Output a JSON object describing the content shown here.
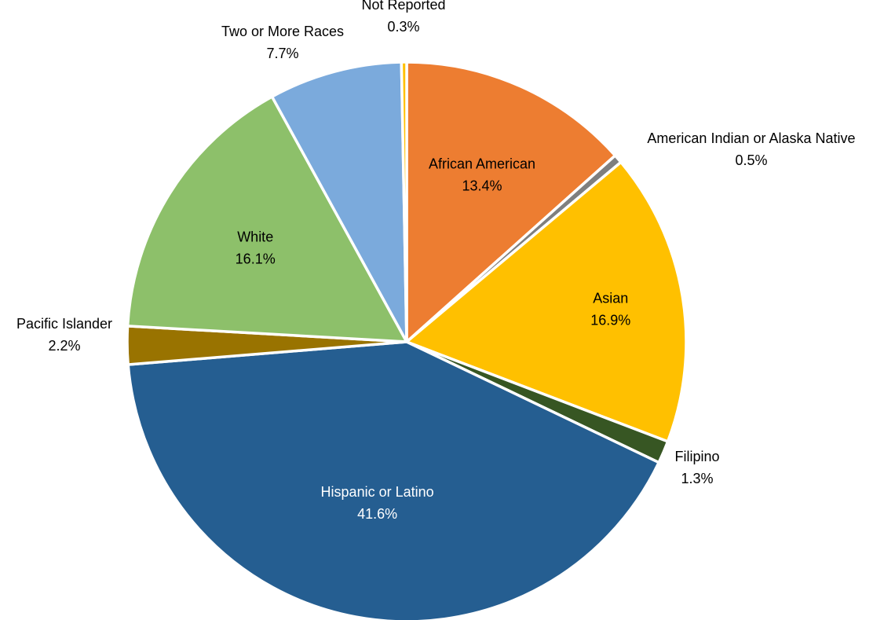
{
  "chart_data": {
    "type": "pie",
    "title": "",
    "start_angle_deg": 0,
    "direction": "clockwise",
    "slices": [
      {
        "name": "African American",
        "value": 13.4,
        "label": "13.4%",
        "color": "#ED7D31",
        "label_style": "inside",
        "text_color": "#000000"
      },
      {
        "name": "American Indian or Alaska Native",
        "value": 0.5,
        "label": "0.5%",
        "color": "#7F7F7F",
        "label_style": "outside",
        "text_color": "#000000"
      },
      {
        "name": "Asian",
        "value": 16.9,
        "label": "16.9%",
        "color": "#FFC000",
        "label_style": "inside",
        "text_color": "#000000"
      },
      {
        "name": "Filipino",
        "value": 1.3,
        "label": "1.3%",
        "color": "#375623",
        "label_style": "outside",
        "text_color": "#000000"
      },
      {
        "name": "Hispanic or Latino",
        "value": 41.6,
        "label": "41.6%",
        "color": "#255E91",
        "label_style": "inside",
        "text_color": "#FFFFFF"
      },
      {
        "name": "Pacific Islander",
        "value": 2.2,
        "label": "2.2%",
        "color": "#997300",
        "label_style": "outside",
        "text_color": "#000000"
      },
      {
        "name": "White",
        "value": 16.1,
        "label": "16.1%",
        "color": "#8DC06A",
        "label_style": "inside",
        "text_color": "#000000"
      },
      {
        "name": "Two or More Races",
        "value": 7.7,
        "label": "7.7%",
        "color": "#7BAADC",
        "label_style": "outside",
        "text_color": "#000000"
      },
      {
        "name": "Not Reported",
        "value": 0.3,
        "label": "0.3%",
        "color": "#FFC000",
        "label_style": "outside",
        "text_color": "#000000"
      }
    ]
  }
}
